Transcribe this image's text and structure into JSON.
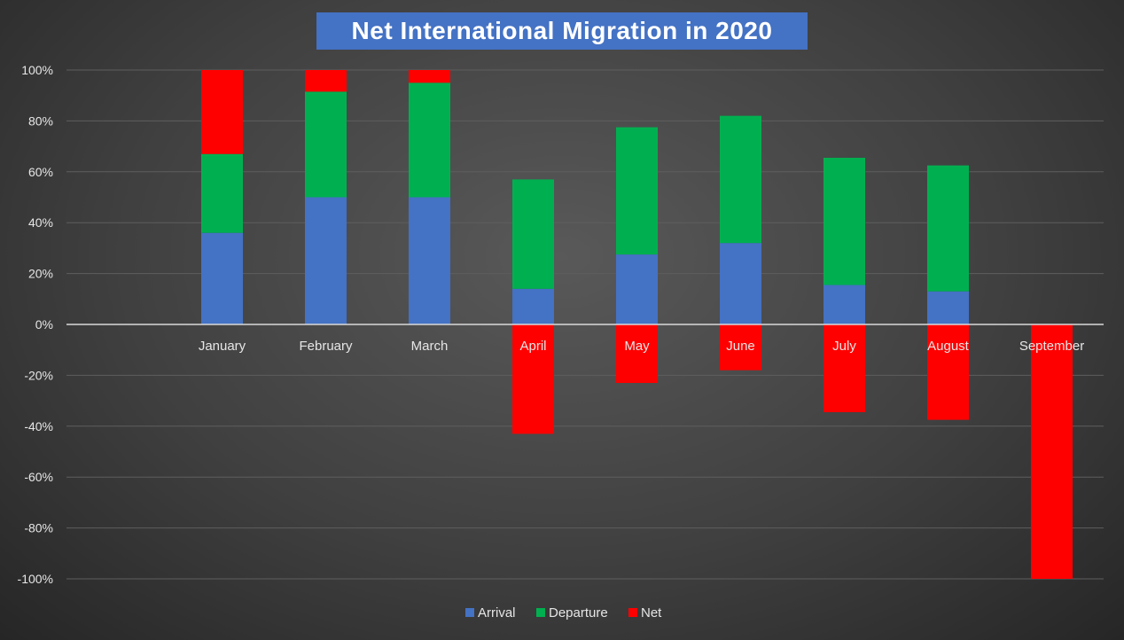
{
  "chart_data": {
    "type": "bar",
    "stacked": true,
    "title": "Net International Migration in 2020",
    "categories": [
      "",
      "January",
      "February",
      "March",
      "April",
      "May",
      "June",
      "July",
      "August",
      "September"
    ],
    "series": [
      {
        "name": "Arrival",
        "color": "#4472C4",
        "values": [
          0,
          36,
          50,
          50,
          14,
          27.5,
          32,
          15.5,
          13,
          0
        ]
      },
      {
        "name": "Departure",
        "color": "#00B050",
        "values": [
          0,
          31,
          41.5,
          45,
          43,
          50,
          50,
          50,
          49.5,
          0
        ]
      },
      {
        "name": "Net",
        "color": "#FF0000",
        "values": [
          0,
          33,
          8.5,
          5,
          -43,
          -23,
          -18,
          -34.5,
          -37.5,
          -100
        ]
      }
    ],
    "ylim": [
      -100,
      100
    ],
    "yticks": [
      "-100%",
      "-80%",
      "-60%",
      "-40%",
      "-20%",
      "0%",
      "20%",
      "40%",
      "60%",
      "80%",
      "100%"
    ],
    "ytick_values": [
      -100,
      -80,
      -60,
      -40,
      -20,
      0,
      20,
      40,
      60,
      80,
      100
    ],
    "grid": true,
    "legend": "bottom",
    "xlabel": "",
    "ylabel": ""
  }
}
